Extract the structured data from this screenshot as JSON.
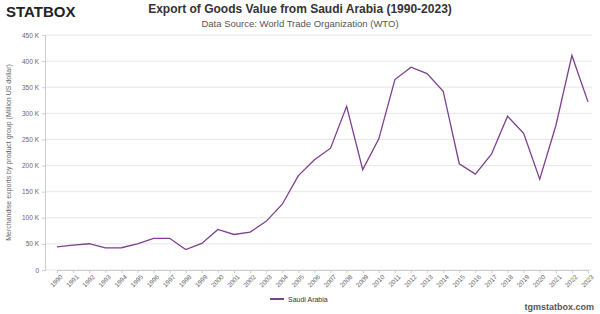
{
  "chart_data": {
    "type": "line",
    "title": "Export of Goods Value from Saudi Arabia (1990-2023)",
    "subtitle": "Data Source: World Trade Organization (WTO)",
    "y_label": "Merchandise exports by product group (Million US dollar)",
    "annotations": [
      "STATBOX",
      "tgmstatbox.com"
    ],
    "categories": [
      "1990",
      "1991",
      "1992",
      "1993",
      "1994",
      "1995",
      "1996",
      "1997",
      "1998",
      "1999",
      "2000",
      "2001",
      "2002",
      "2003",
      "2004",
      "2005",
      "2006",
      "2007",
      "2008",
      "2009",
      "2010",
      "2011",
      "2012",
      "2013",
      "2014",
      "2015",
      "2016",
      "2017",
      "2018",
      "2019",
      "2020",
      "2021",
      "2022",
      "2023"
    ],
    "series": [
      {
        "name": "Saudi Arabia",
        "color": "#7e3f8f",
        "values": [
          44400,
          47800,
          50300,
          42400,
          42600,
          50000,
          60700,
          60700,
          39000,
          50800,
          77600,
          68000,
          72500,
          93200,
          126000,
          180700,
          211000,
          233300,
          313500,
          192300,
          251100,
          364700,
          388400,
          376000,
          342400,
          203500,
          183600,
          221800,
          294500,
          261600,
          173900,
          276200,
          410900,
          322000
        ]
      }
    ],
    "ylim": [
      0,
      450000
    ],
    "yticks": [
      0,
      {
        "value": 50000,
        "label": "50 K"
      },
      {
        "value": 100000,
        "label": "100 K"
      },
      {
        "value": 150000,
        "label": "150 K"
      },
      {
        "value": 200000,
        "label": "200 K"
      },
      {
        "value": 250000,
        "label": "250 K"
      },
      {
        "value": 300000,
        "label": "300 K"
      },
      {
        "value": 350000,
        "label": "350 K"
      },
      {
        "value": 400000,
        "label": "400 K"
      },
      {
        "value": 450000,
        "label": "450 K"
      }
    ],
    "grid": true,
    "legend": "bottom"
  }
}
